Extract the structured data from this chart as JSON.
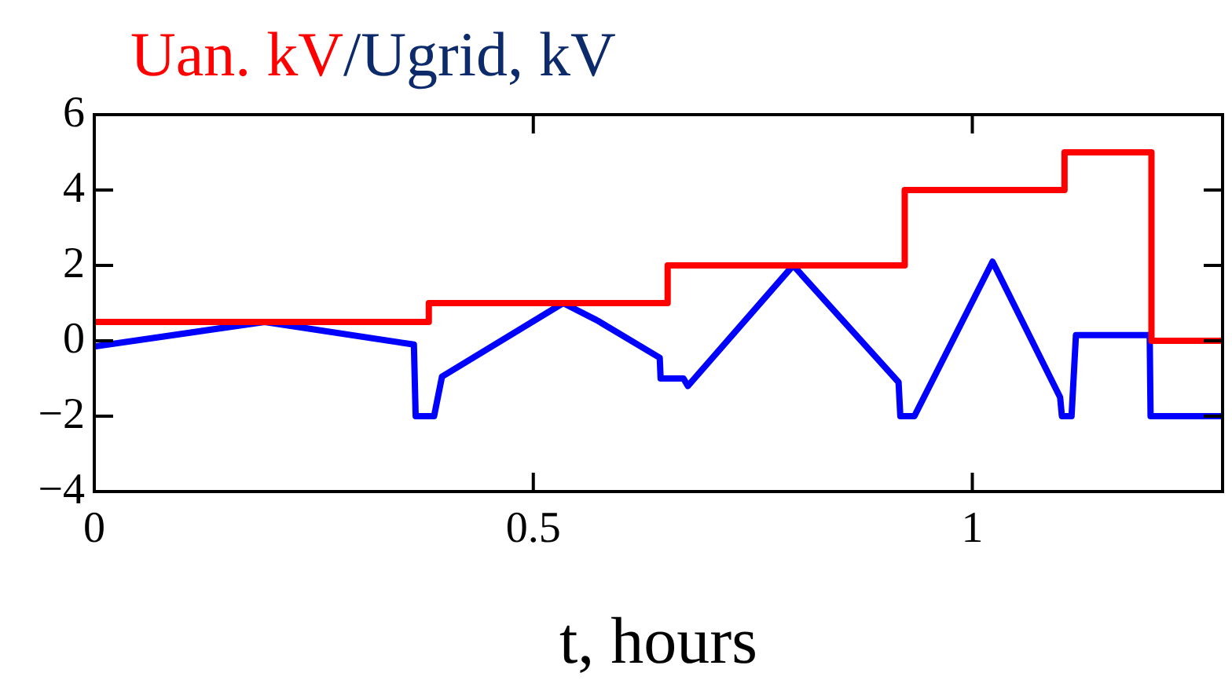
{
  "chart_data": {
    "type": "line",
    "title": "Uan. kV/Ugrid, kV",
    "xlabel": "t, hours",
    "xlim": [
      0,
      1.285
    ],
    "xticks": [
      0,
      0.5,
      1
    ],
    "ylim": [
      -4,
      6
    ],
    "yticks": [
      {
        "value": -4,
        "label": "−4"
      },
      {
        "value": -2,
        "label": "−2"
      },
      0,
      2,
      4,
      6
    ],
    "grid": false,
    "legend": false,
    "marker": "none",
    "line_style": "solid",
    "series": [
      {
        "type": "step",
        "color": "#ff0000",
        "x": [
          0,
          0.381,
          0.653,
          0.923,
          1.105,
          1.204,
          1.285
        ],
        "values": [
          0.5,
          1,
          2,
          4,
          5,
          0,
          0
        ]
      },
      {
        "type": "line",
        "color": "#0000ff",
        "x": [
          0,
          0.194,
          0.364,
          0.366,
          0.387,
          0.396,
          0.534,
          0.572,
          0.644,
          0.645,
          0.671,
          0.676,
          0.796,
          0.916,
          0.918,
          0.934,
          1.023,
          1.1,
          1.102,
          1.113,
          1.118,
          1.202,
          1.203,
          1.285
        ],
        "values": [
          -0.15,
          0.5,
          -0.1,
          -2,
          -2,
          -0.95,
          1,
          0.55,
          -0.45,
          -1,
          -1,
          -1.2,
          2,
          -1.1,
          -2,
          -2,
          2.1,
          -1.5,
          -2,
          -2,
          0.15,
          0.15,
          -2,
          -2
        ]
      }
    ]
  }
}
